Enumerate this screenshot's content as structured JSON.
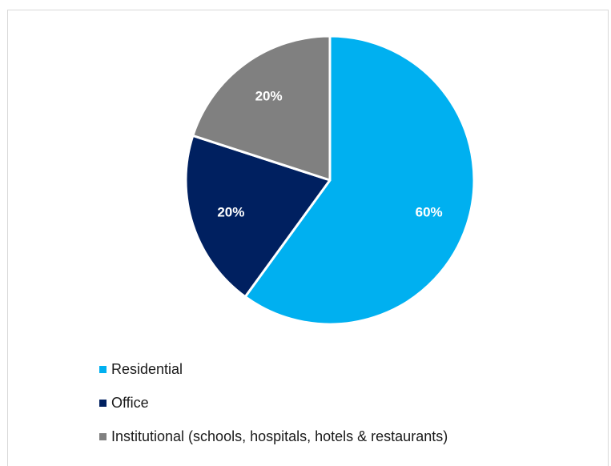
{
  "chart_data": {
    "type": "pie",
    "slices": [
      {
        "label": "Residential",
        "value": 60,
        "display": "60%",
        "color": "#00B0F0"
      },
      {
        "label": "Office",
        "value": 20,
        "display": "20%",
        "color": "#002060"
      },
      {
        "label": "Institutional (schools, hospitals, hotels & restaurants)",
        "value": 20,
        "display": "20%",
        "color": "#808080"
      }
    ],
    "start": "12 o'clock",
    "direction": "clockwise",
    "legend": "bottom-left",
    "slice_border_color": "#ffffff"
  }
}
